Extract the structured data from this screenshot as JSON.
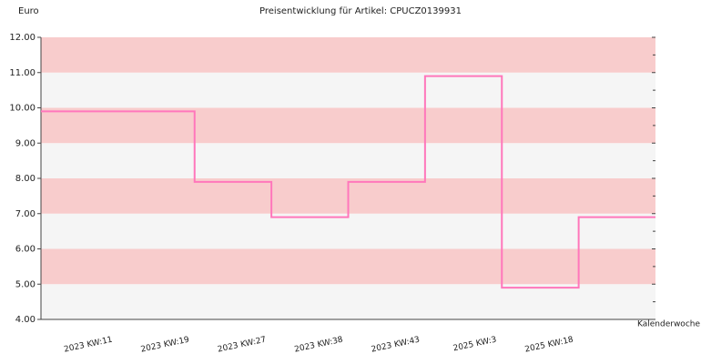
{
  "chart_data": {
    "type": "step",
    "title": "Preisentwicklung für Artikel: CPUCZ0139931",
    "y_label": "Euro",
    "x_label": "Kalenderwoche",
    "categories": [
      "2023 KW:11",
      "2023 KW:19",
      "2023 KW:27",
      "2023 KW:38",
      "2023 KW:43",
      "2025 KW:3",
      "2025 KW:18"
    ],
    "values": [
      9.9,
      7.9,
      6.9,
      7.9,
      10.9,
      4.9,
      6.9
    ],
    "color": "#ff77bb",
    "ylim": [
      4,
      12
    ],
    "yticks": [
      {
        "value": 4,
        "label": "4.00"
      },
      {
        "value": 5,
        "label": "5.00"
      },
      {
        "value": 6,
        "label": "6.00"
      },
      {
        "value": 7,
        "label": "7.00"
      },
      {
        "value": 8,
        "label": "8.00"
      },
      {
        "value": 9,
        "label": "9.00"
      },
      {
        "value": 10,
        "label": "10.00"
      },
      {
        "value": 11,
        "label": "11.00"
      },
      {
        "value": 12,
        "label": "12.00"
      }
    ],
    "band_colors": [
      "#f5f5f5",
      "#f8cccc"
    ]
  }
}
